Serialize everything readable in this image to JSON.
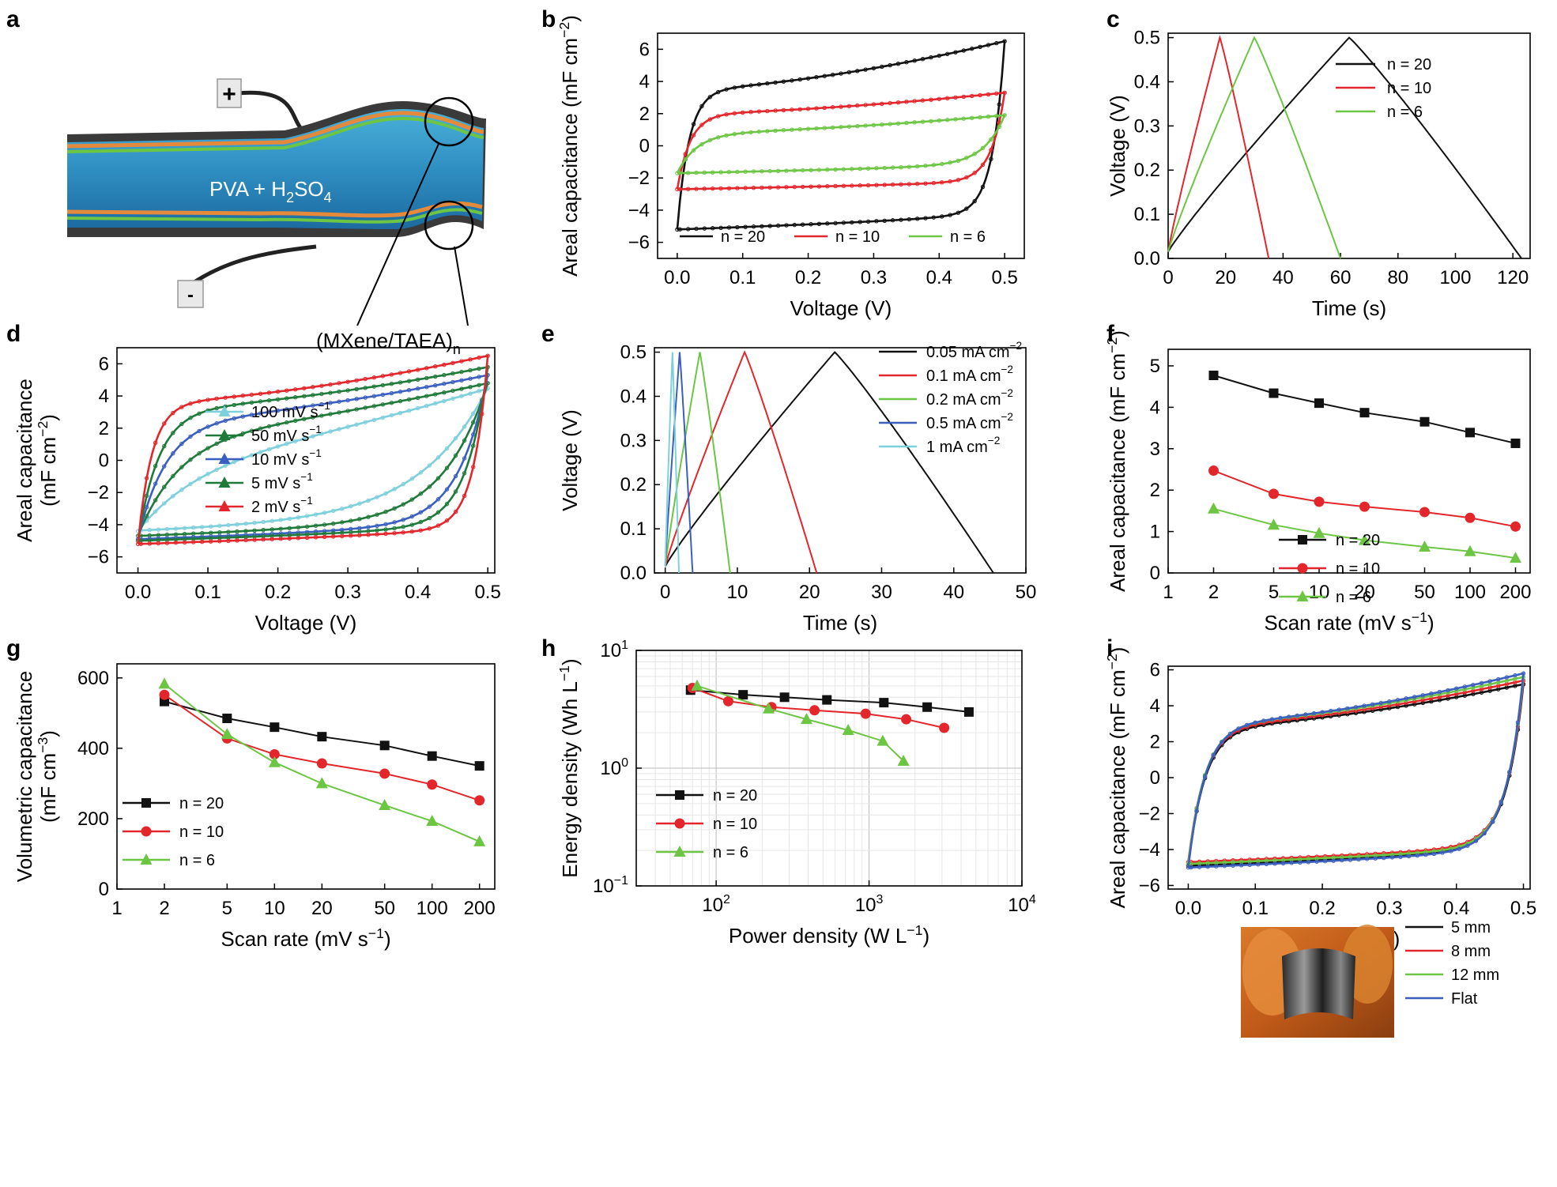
{
  "colors": {
    "black": "#111111",
    "red": "#e3262b",
    "green": "#6cc644",
    "blue": "#3b5fbf",
    "cyan": "#7ecfdc",
    "darkgreen": "#1f7a3a"
  },
  "panel_a": {
    "letter": "a",
    "plus": "+",
    "minus": "-",
    "electrolyte": "PVA + H",
    "electrolyte_sub2": "2",
    "electrolyte_so": "SO",
    "electrolyte_sub4": "4",
    "film_label": "(MXene/TAEA)",
    "film_sub": "n"
  },
  "chart_data": [
    {
      "id": "b",
      "letter": "b",
      "type": "line",
      "xlabel": "Voltage (V)",
      "ylabel": "Areal capacitance (mF cm−2)",
      "xlim": [
        -0.03,
        0.53
      ],
      "ylim": [
        -7,
        7
      ],
      "xticks": [
        0.0,
        0.1,
        0.2,
        0.3,
        0.4,
        0.5
      ],
      "xticklabels": [
        "0.0",
        "0.1",
        "0.2",
        "0.3",
        "0.4",
        "0.5"
      ],
      "yticks": [
        -6,
        -4,
        -2,
        0,
        2,
        4,
        6
      ],
      "yticklabels": [
        "−6",
        "−4",
        "−2",
        "0",
        "2",
        "4",
        "6"
      ],
      "legend": [
        {
          "name": "n = 20",
          "color": "black"
        },
        {
          "name": "n = 10",
          "color": "red"
        },
        {
          "name": "n = 6",
          "color": "green"
        }
      ],
      "series": [
        {
          "name": "n = 20",
          "color": "black",
          "kind": "cv",
          "vmax": 0.5,
          "top_start": 3.5,
          "top_end": 6.5,
          "bottom_start": -5.2,
          "bottom_end": -4.0,
          "rise": 0.018
        },
        {
          "name": "n = 10",
          "color": "red",
          "kind": "cv",
          "vmax": 0.5,
          "top_start": 2.0,
          "top_end": 3.3,
          "bottom_start": -2.7,
          "bottom_end": -2.1,
          "rise": 0.02
        },
        {
          "name": "n = 6",
          "color": "green",
          "kind": "cv",
          "vmax": 0.5,
          "top_start": 0.8,
          "top_end": 1.9,
          "bottom_start": -1.7,
          "bottom_end": -1.0,
          "rise": 0.03
        }
      ]
    },
    {
      "id": "c",
      "letter": "c",
      "type": "line",
      "xlabel": "Time (s)",
      "ylabel": "Voltage (V)",
      "xlim": [
        0,
        126
      ],
      "ylim": [
        0,
        0.51
      ],
      "xticks": [
        0,
        20,
        40,
        60,
        80,
        100,
        120
      ],
      "xticklabels": [
        "0",
        "20",
        "40",
        "60",
        "80",
        "100",
        "120"
      ],
      "yticks": [
        0,
        0.1,
        0.2,
        0.3,
        0.4,
        0.5
      ],
      "yticklabels": [
        "0.0",
        "0.1",
        "0.2",
        "0.3",
        "0.4",
        "0.5"
      ],
      "legend": [
        {
          "name": "n = 20",
          "color": "black"
        },
        {
          "name": "n = 10",
          "color": "red"
        },
        {
          "name": "n = 6",
          "color": "green"
        }
      ],
      "series": [
        {
          "name": "n = 20",
          "color": "black",
          "kind": "gcd",
          "peak_t": 63,
          "end_t": 123,
          "vmax": 0.5
        },
        {
          "name": "n = 10",
          "color": "red",
          "kind": "gcd",
          "peak_t": 18,
          "end_t": 35,
          "vmax": 0.5
        },
        {
          "name": "n = 6",
          "color": "green",
          "kind": "gcd",
          "peak_t": 30,
          "end_t": 60,
          "vmax": 0.5
        }
      ]
    },
    {
      "id": "d",
      "letter": "d",
      "type": "line",
      "xlabel": "Voltage (V)",
      "ylabel": "Areal capacitance",
      "ylabel2": "(mF cm−2)",
      "xlim": [
        -0.03,
        0.51
      ],
      "ylim": [
        -7,
        7
      ],
      "xticks": [
        0.0,
        0.1,
        0.2,
        0.3,
        0.4,
        0.5
      ],
      "xticklabels": [
        "0.0",
        "0.1",
        "0.2",
        "0.3",
        "0.4",
        "0.5"
      ],
      "yticks": [
        -6,
        -4,
        -2,
        0,
        2,
        4,
        6
      ],
      "yticklabels": [
        "−6",
        "−4",
        "−2",
        "0",
        "2",
        "4",
        "6"
      ],
      "legend": [
        {
          "name": "100 mV s−1",
          "color": "cyan"
        },
        {
          "name": "50 mV s−1",
          "color": "darkgreen"
        },
        {
          "name": "10 mV s−1",
          "color": "blue"
        },
        {
          "name": "5 mV s−1",
          "color": "darkgreen"
        },
        {
          "name": "2 mV s−1",
          "color": "red"
        }
      ],
      "series": [
        {
          "name": "100 mV s−1",
          "color": "cyan",
          "kind": "cv",
          "vmax": 0.5,
          "top_start": 0.6,
          "top_end": 4.5,
          "bottom_start": -4.4,
          "bottom_end": -3.0,
          "rise": 0.09
        },
        {
          "name": "50 mV s−1",
          "color": "darkgreen",
          "kind": "cv",
          "vmax": 0.5,
          "top_start": 1.8,
          "top_end": 4.8,
          "bottom_start": -4.7,
          "bottom_end": -3.3,
          "rise": 0.06
        },
        {
          "name": "10 mV s−1",
          "color": "blue",
          "kind": "cv",
          "vmax": 0.5,
          "top_start": 2.5,
          "top_end": 5.3,
          "bottom_start": -4.9,
          "bottom_end": -3.6,
          "rise": 0.04
        },
        {
          "name": "5 mV s−1",
          "color": "darkgreen",
          "kind": "cv",
          "vmax": 0.5,
          "top_start": 3.2,
          "top_end": 5.8,
          "bottom_start": -5.0,
          "bottom_end": -3.8,
          "rise": 0.03
        },
        {
          "name": "2 mV s−1",
          "color": "red",
          "kind": "cv",
          "vmax": 0.5,
          "top_start": 3.6,
          "top_end": 6.5,
          "bottom_start": -5.2,
          "bottom_end": -4.0,
          "rise": 0.02
        }
      ]
    },
    {
      "id": "e",
      "letter": "e",
      "type": "line",
      "xlabel": "Time (s)",
      "ylabel": "Voltage (V)",
      "xlim": [
        -1.5,
        50
      ],
      "ylim": [
        0,
        0.51
      ],
      "xticks": [
        0,
        10,
        20,
        30,
        40,
        50
      ],
      "xticklabels": [
        "0",
        "10",
        "20",
        "30",
        "40",
        "50"
      ],
      "yticks": [
        0,
        0.1,
        0.2,
        0.3,
        0.4,
        0.5
      ],
      "yticklabels": [
        "0.0",
        "0.1",
        "0.2",
        "0.3",
        "0.4",
        "0.5"
      ],
      "legend": [
        {
          "name": "0.05 mA cm−2",
          "color": "black"
        },
        {
          "name": "0.1 mA cm−2",
          "color": "red"
        },
        {
          "name": "0.2 mA cm−2",
          "color": "green"
        },
        {
          "name": "0.5 mA cm−2",
          "color": "blue"
        },
        {
          "name": "1 mA cm−2",
          "color": "cyan"
        }
      ],
      "series": [
        {
          "name": "0.05 mA cm−2",
          "color": "black",
          "kind": "gcd",
          "peak_t": 23.5,
          "end_t": 45.5,
          "vmax": 0.5
        },
        {
          "name": "0.1 mA cm−2",
          "color": "red",
          "kind": "gcd",
          "peak_t": 11,
          "end_t": 21,
          "vmax": 0.5
        },
        {
          "name": "0.2 mA cm−2",
          "color": "green",
          "kind": "gcd",
          "peak_t": 4.8,
          "end_t": 9,
          "vmax": 0.5
        },
        {
          "name": "0.5 mA cm−2",
          "color": "blue",
          "kind": "gcd",
          "peak_t": 2.0,
          "end_t": 3.8,
          "vmax": 0.5
        },
        {
          "name": "1 mA cm−2",
          "color": "cyan",
          "kind": "gcd",
          "peak_t": 1.0,
          "end_t": 1.9,
          "vmax": 0.5
        }
      ]
    },
    {
      "id": "f",
      "letter": "f",
      "type": "line",
      "xscale": "log",
      "xlabel": "Scan rate (mV s−1)",
      "ylabel": "Areal capacitance (mF cm−2)",
      "xlim": [
        1,
        250
      ],
      "ylim": [
        0,
        5.4
      ],
      "xticks": [
        1,
        2,
        5,
        10,
        20,
        50,
        100,
        200
      ],
      "xticklabels": [
        "1",
        "2",
        "5",
        "10",
        "20",
        "50",
        "100",
        "200"
      ],
      "yticks": [
        0,
        1,
        2,
        3,
        4,
        5
      ],
      "yticklabels": [
        "0",
        "1",
        "2",
        "3",
        "4",
        "5"
      ],
      "legend": [
        {
          "name": "n = 20",
          "color": "black"
        },
        {
          "name": "n = 10",
          "color": "red"
        },
        {
          "name": "n = 6",
          "color": "green"
        }
      ],
      "x": [
        2,
        5,
        10,
        20,
        50,
        100,
        200
      ],
      "series": [
        {
          "name": "n = 20",
          "color": "black",
          "marker": "square",
          "values": [
            4.77,
            4.34,
            4.1,
            3.87,
            3.65,
            3.39,
            3.13
          ]
        },
        {
          "name": "n = 10",
          "color": "red",
          "marker": "circle",
          "values": [
            2.47,
            1.91,
            1.72,
            1.6,
            1.47,
            1.33,
            1.12
          ]
        },
        {
          "name": "n = 6",
          "color": "green",
          "marker": "triangle",
          "values": [
            1.55,
            1.16,
            0.96,
            0.79,
            0.63,
            0.52,
            0.36
          ]
        }
      ]
    },
    {
      "id": "g",
      "letter": "g",
      "type": "line",
      "xscale": "log",
      "xlabel": "Scan rate (mV s−1)",
      "ylabel": "Volumetric capacitance",
      "ylabel2": "(mF cm−3)",
      "xlim": [
        1,
        250
      ],
      "ylim": [
        0,
        640
      ],
      "xticks": [
        1,
        2,
        5,
        10,
        20,
        50,
        100,
        200
      ],
      "xticklabels": [
        "1",
        "2",
        "5",
        "10",
        "20",
        "50",
        "100",
        "200"
      ],
      "yticks": [
        0,
        200,
        400,
        600
      ],
      "yticklabels": [
        "0",
        "200",
        "400",
        "600"
      ],
      "legend": [
        {
          "name": "n = 20",
          "color": "black"
        },
        {
          "name": "n = 10",
          "color": "red"
        },
        {
          "name": "n = 6",
          "color": "green"
        }
      ],
      "x": [
        2,
        5,
        10,
        20,
        50,
        100,
        200
      ],
      "series": [
        {
          "name": "n = 20",
          "color": "black",
          "marker": "square",
          "values": [
            533,
            485,
            460,
            433,
            408,
            378,
            350
          ]
        },
        {
          "name": "n = 10",
          "color": "red",
          "marker": "circle",
          "values": [
            552,
            428,
            383,
            357,
            328,
            297,
            252
          ]
        },
        {
          "name": "n = 6",
          "color": "green",
          "marker": "triangle",
          "values": [
            583,
            440,
            360,
            300,
            238,
            193,
            135
          ]
        }
      ]
    },
    {
      "id": "h",
      "letter": "h",
      "type": "line",
      "xscale": "log",
      "yscale": "log",
      "xlabel": "Power density (W L−1)",
      "ylabel": "Energy density (Wh L−1)",
      "xlim": [
        30,
        10000
      ],
      "ylim": [
        0.1,
        10
      ],
      "xticks": [
        100,
        1000,
        10000
      ],
      "xticklabels": [
        "10",
        "10",
        "10"
      ],
      "xtick_exps": [
        "2",
        "3",
        "4"
      ],
      "yticks": [
        0.1,
        1,
        10
      ],
      "yticklabels": [
        "10",
        "10",
        "10"
      ],
      "ytick_exps": [
        "−1",
        "0",
        "1"
      ],
      "legend": [
        {
          "name": "n = 20",
          "color": "black"
        },
        {
          "name": "n = 10",
          "color": "red"
        },
        {
          "name": "n = 6",
          "color": "green"
        }
      ],
      "series": [
        {
          "name": "n = 20",
          "color": "black",
          "marker": "square",
          "x": [
            68,
            150,
            280,
            530,
            1250,
            2400,
            4500
          ],
          "values": [
            4.6,
            4.2,
            4.0,
            3.8,
            3.6,
            3.3,
            3.0
          ]
        },
        {
          "name": "n = 10",
          "color": "red",
          "marker": "circle",
          "x": [
            70,
            120,
            230,
            440,
            950,
            1750,
            3100
          ],
          "values": [
            4.8,
            3.7,
            3.3,
            3.1,
            2.9,
            2.6,
            2.2
          ]
        },
        {
          "name": "n = 6",
          "color": "green",
          "marker": "triangle",
          "x": [
            75,
            220,
            390,
            730,
            1230,
            1680
          ],
          "values": [
            5.0,
            3.2,
            2.6,
            2.1,
            1.7,
            1.15
          ]
        }
      ]
    },
    {
      "id": "i",
      "letter": "i",
      "type": "line",
      "xlabel": "Voltage (V)",
      "ylabel": "Areal capacitance (mF cm−2)",
      "xlim": [
        -0.03,
        0.51
      ],
      "ylim": [
        -6.2,
        6.2
      ],
      "xticks": [
        0.0,
        0.1,
        0.2,
        0.3,
        0.4,
        0.5
      ],
      "xticklabels": [
        "0.0",
        "0.1",
        "0.2",
        "0.3",
        "0.4",
        "0.5"
      ],
      "yticks": [
        -6,
        -4,
        -2,
        0,
        2,
        4,
        6
      ],
      "yticklabels": [
        "−6",
        "−4",
        "−2",
        "0",
        "2",
        "4",
        "6"
      ],
      "legend": [
        {
          "name": "5 mm",
          "color": "black"
        },
        {
          "name": "8 mm",
          "color": "red"
        },
        {
          "name": "12 mm",
          "color": "green"
        },
        {
          "name": "Flat",
          "color": "blue"
        }
      ],
      "series": [
        {
          "name": "5 mm",
          "color": "black",
          "kind": "cv",
          "vmax": 0.5,
          "top_start": 2.8,
          "top_end": 5.2,
          "bottom_start": -4.9,
          "bottom_end": -3.6,
          "rise": 0.025
        },
        {
          "name": "8 mm",
          "color": "red",
          "kind": "cv",
          "vmax": 0.5,
          "top_start": 2.9,
          "top_end": 5.4,
          "bottom_start": -4.7,
          "bottom_end": -3.5,
          "rise": 0.025
        },
        {
          "name": "12 mm",
          "color": "green",
          "kind": "cv",
          "vmax": 0.5,
          "top_start": 3.0,
          "top_end": 5.6,
          "bottom_start": -4.8,
          "bottom_end": -3.6,
          "rise": 0.025
        },
        {
          "name": "Flat",
          "color": "blue",
          "kind": "cv",
          "vmax": 0.5,
          "top_start": 3.0,
          "top_end": 5.8,
          "bottom_start": -5.0,
          "bottom_end": -3.7,
          "rise": 0.025
        }
      ]
    }
  ]
}
